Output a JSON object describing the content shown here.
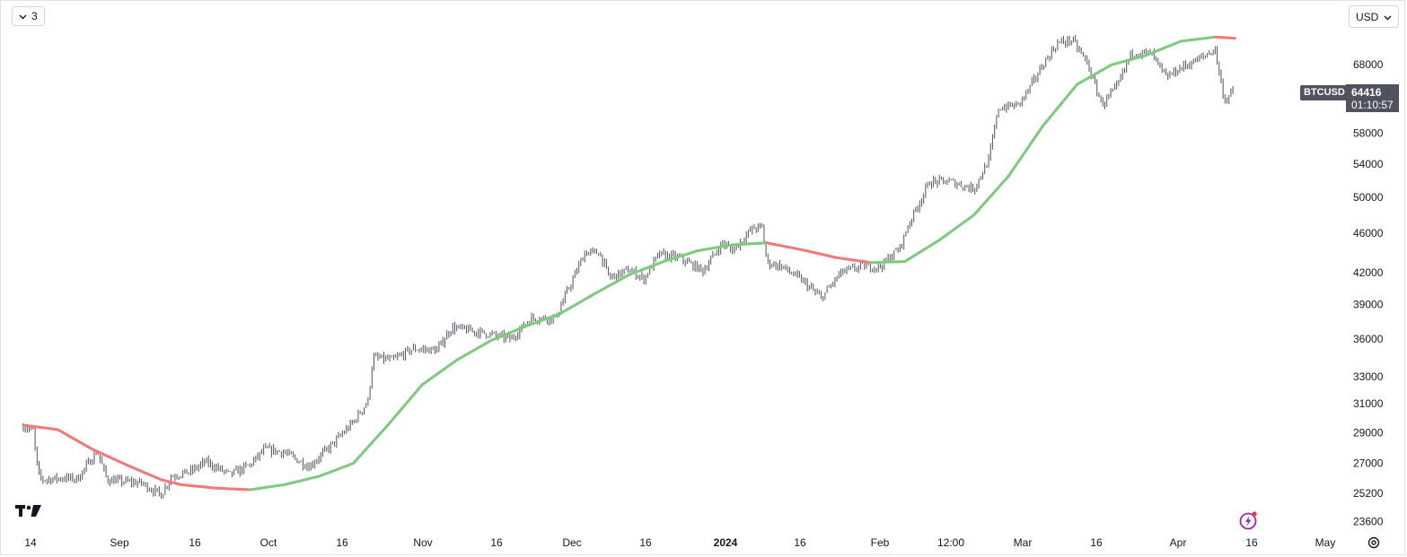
{
  "toolbar": {
    "interval_label": "3",
    "currency_label": "USD"
  },
  "symbol": {
    "name": "BTCUSD",
    "last_price": "64416",
    "countdown": "01:10:57"
  },
  "colors": {
    "candle": "#50535e",
    "ma_up": "#7ecb7e",
    "ma_down": "#f07a7a",
    "price_tag": "#50535e"
  },
  "chart_data": {
    "type": "line",
    "scale": "log",
    "y_ticks": [
      23600,
      25200,
      27000,
      29000,
      31000,
      33000,
      36000,
      39000,
      42000,
      46000,
      50000,
      54000,
      58000,
      68000
    ],
    "x_ticks": [
      {
        "label": "14",
        "bold": false
      },
      {
        "label": "Sep",
        "bold": false
      },
      {
        "label": "16",
        "bold": false
      },
      {
        "label": "Oct",
        "bold": false
      },
      {
        "label": "16",
        "bold": false
      },
      {
        "label": "Nov",
        "bold": false
      },
      {
        "label": "16",
        "bold": false
      },
      {
        "label": "Dec",
        "bold": false
      },
      {
        "label": "16",
        "bold": false
      },
      {
        "label": "2024",
        "bold": true
      },
      {
        "label": "16",
        "bold": false
      },
      {
        "label": "Feb",
        "bold": false
      },
      {
        "label": "12:00",
        "bold": false
      },
      {
        "label": "Mar",
        "bold": false
      },
      {
        "label": "16",
        "bold": false
      },
      {
        "label": "Apr",
        "bold": false
      },
      {
        "label": "16",
        "bold": false
      },
      {
        "label": "May",
        "bold": false
      }
    ],
    "series": [
      {
        "kind": "price",
        "points": [
          [
            "2023-08-14",
            29400
          ],
          [
            "2023-08-16",
            29100
          ],
          [
            "2023-08-17",
            26300
          ],
          [
            "2023-08-18",
            26000
          ],
          [
            "2023-08-22",
            26100
          ],
          [
            "2023-08-25",
            26050
          ],
          [
            "2023-08-29",
            27800
          ],
          [
            "2023-08-31",
            26000
          ],
          [
            "2023-09-03",
            25900
          ],
          [
            "2023-09-07",
            25800
          ],
          [
            "2023-09-11",
            25100
          ],
          [
            "2023-09-13",
            26200
          ],
          [
            "2023-09-17",
            26500
          ],
          [
            "2023-09-20",
            27100
          ],
          [
            "2023-09-25",
            26300
          ],
          [
            "2023-09-29",
            26900
          ],
          [
            "2023-10-02",
            27900
          ],
          [
            "2023-10-06",
            27700
          ],
          [
            "2023-10-11",
            26800
          ],
          [
            "2023-10-16",
            28300
          ],
          [
            "2023-10-20",
            29700
          ],
          [
            "2023-10-23",
            31200
          ],
          [
            "2023-10-24",
            34500
          ],
          [
            "2023-10-28",
            34300
          ],
          [
            "2023-11-01",
            35200
          ],
          [
            "2023-11-06",
            35100
          ],
          [
            "2023-11-09",
            37000
          ],
          [
            "2023-11-13",
            36700
          ],
          [
            "2023-11-17",
            36400
          ],
          [
            "2023-11-21",
            36000
          ],
          [
            "2023-11-25",
            37800
          ],
          [
            "2023-11-30",
            37800
          ],
          [
            "2023-12-04",
            41800
          ],
          [
            "2023-12-06",
            44000
          ],
          [
            "2023-12-09",
            44000
          ],
          [
            "2023-12-11",
            41500
          ],
          [
            "2023-12-15",
            42300
          ],
          [
            "2023-12-18",
            41400
          ],
          [
            "2023-12-21",
            43800
          ],
          [
            "2023-12-25",
            43500
          ],
          [
            "2023-12-30",
            42200
          ],
          [
            "2024-01-03",
            45000
          ],
          [
            "2024-01-05",
            44200
          ],
          [
            "2024-01-09",
            46500
          ],
          [
            "2024-01-11",
            46700
          ],
          [
            "2024-01-12",
            43000
          ],
          [
            "2024-01-15",
            42600
          ],
          [
            "2024-01-19",
            41300
          ],
          [
            "2024-01-23",
            39600
          ],
          [
            "2024-01-27",
            42000
          ],
          [
            "2024-01-31",
            42600
          ],
          [
            "2024-02-04",
            42600
          ],
          [
            "2024-02-08",
            44500
          ],
          [
            "2024-02-10",
            47300
          ],
          [
            "2024-02-14",
            51800
          ],
          [
            "2024-02-18",
            51900
          ],
          [
            "2024-02-23",
            51000
          ],
          [
            "2024-02-26",
            54500
          ],
          [
            "2024-02-28",
            61500
          ],
          [
            "2024-03-03",
            62000
          ],
          [
            "2024-03-05",
            64000
          ],
          [
            "2024-03-08",
            68000
          ],
          [
            "2024-03-11",
            71500
          ],
          [
            "2024-03-14",
            72000
          ],
          [
            "2024-03-17",
            68300
          ],
          [
            "2024-03-20",
            62000
          ],
          [
            "2024-03-23",
            64500
          ],
          [
            "2024-03-26",
            69900
          ],
          [
            "2024-03-30",
            69800
          ],
          [
            "2024-04-02",
            66000
          ],
          [
            "2024-04-05",
            67500
          ],
          [
            "2024-04-09",
            69000
          ],
          [
            "2024-04-12",
            70500
          ],
          [
            "2024-04-13",
            65800
          ],
          [
            "2024-04-14",
            62500
          ],
          [
            "2024-04-16",
            64416
          ]
        ]
      },
      {
        "kind": "moving-average",
        "points": [
          [
            "2023-08-14",
            29500
          ],
          [
            "2023-08-21",
            29200
          ],
          [
            "2023-08-28",
            27900
          ],
          [
            "2023-09-04",
            26900
          ],
          [
            "2023-09-11",
            26000
          ],
          [
            "2023-09-15",
            25700
          ],
          [
            "2023-09-22",
            25500
          ],
          [
            "2023-09-29",
            25400
          ],
          [
            "2023-10-06",
            25700
          ],
          [
            "2023-10-13",
            26200
          ],
          [
            "2023-10-20",
            27000
          ],
          [
            "2023-10-27",
            29500
          ],
          [
            "2023-11-03",
            32400
          ],
          [
            "2023-11-10",
            34300
          ],
          [
            "2023-11-17",
            35900
          ],
          [
            "2023-11-24",
            37100
          ],
          [
            "2023-12-01",
            38200
          ],
          [
            "2023-12-08",
            40000
          ],
          [
            "2023-12-15",
            41800
          ],
          [
            "2023-12-22",
            43100
          ],
          [
            "2023-12-29",
            44200
          ],
          [
            "2024-01-05",
            44800
          ],
          [
            "2024-01-12",
            45000
          ],
          [
            "2024-01-19",
            44300
          ],
          [
            "2024-01-26",
            43500
          ],
          [
            "2024-02-02",
            43000
          ],
          [
            "2024-02-09",
            43100
          ],
          [
            "2024-02-16",
            45300
          ],
          [
            "2024-02-23",
            48000
          ],
          [
            "2024-03-01",
            52500
          ],
          [
            "2024-03-08",
            59000
          ],
          [
            "2024-03-15",
            65000
          ],
          [
            "2024-03-22",
            68000
          ],
          [
            "2024-03-29",
            69500
          ],
          [
            "2024-04-05",
            71800
          ],
          [
            "2024-04-12",
            72500
          ],
          [
            "2024-04-16",
            72300
          ]
        ]
      }
    ],
    "axis": {
      "x_range": [
        "2023-08-10",
        "2024-05-08"
      ],
      "y_range": [
        22800,
        75000
      ],
      "y_position": "right"
    },
    "grid": false,
    "legend": "none"
  }
}
